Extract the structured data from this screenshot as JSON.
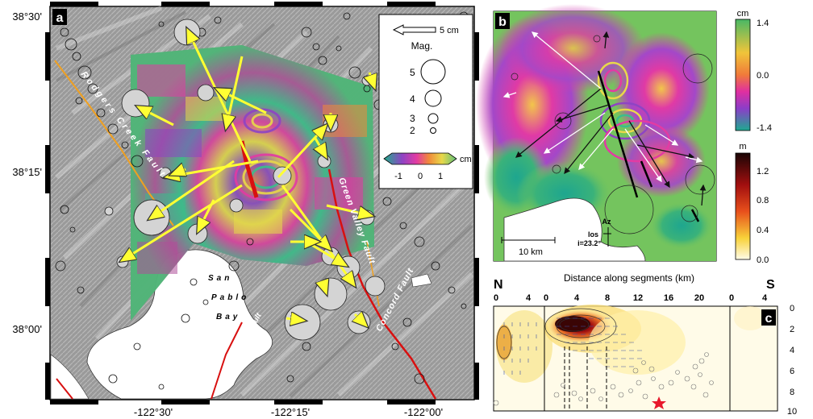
{
  "panels": {
    "a": {
      "label": "a",
      "lat_labels": [
        "38°30'",
        "38°15'",
        "38°00'"
      ],
      "lon_labels": [
        "-122°30'",
        "-122°15'",
        "-122°00'"
      ],
      "fault_labels": [
        "Rodgers Creek Fault",
        "Green Valley Fault",
        "Concord Fault",
        "Hayward Fault"
      ],
      "bay_label": [
        "San",
        "Pablo",
        "Bay"
      ],
      "legend": {
        "vector_label": "5 cm",
        "mag_title": "Mag.",
        "mags": [
          "5",
          "4",
          "3",
          "2"
        ]
      },
      "colorbar": {
        "unit": "cm",
        "ticks": [
          "-1",
          "0",
          "1"
        ]
      }
    },
    "b": {
      "label": "b",
      "scale_label": "10 km",
      "az_label": "Az",
      "los_label": "los",
      "incidence_label": "i=23.2°",
      "colorbar_cm": {
        "unit": "cm",
        "ticks": [
          "1.4",
          "0.0",
          "-1.4"
        ]
      },
      "colorbar_m": {
        "unit": "m",
        "ticks": [
          "1.2",
          "0.8",
          "0.4",
          "0.0"
        ]
      }
    },
    "c": {
      "label": "c",
      "x_title": "Distance along segments (km)",
      "north": "N",
      "south": "S",
      "x_ticks_top": [
        "0",
        "4",
        "0",
        "4",
        "8",
        "12",
        "16",
        "20",
        "0",
        "4"
      ],
      "depth_ticks": [
        "0",
        "2",
        "4",
        "6",
        "8",
        "10"
      ]
    }
  }
}
